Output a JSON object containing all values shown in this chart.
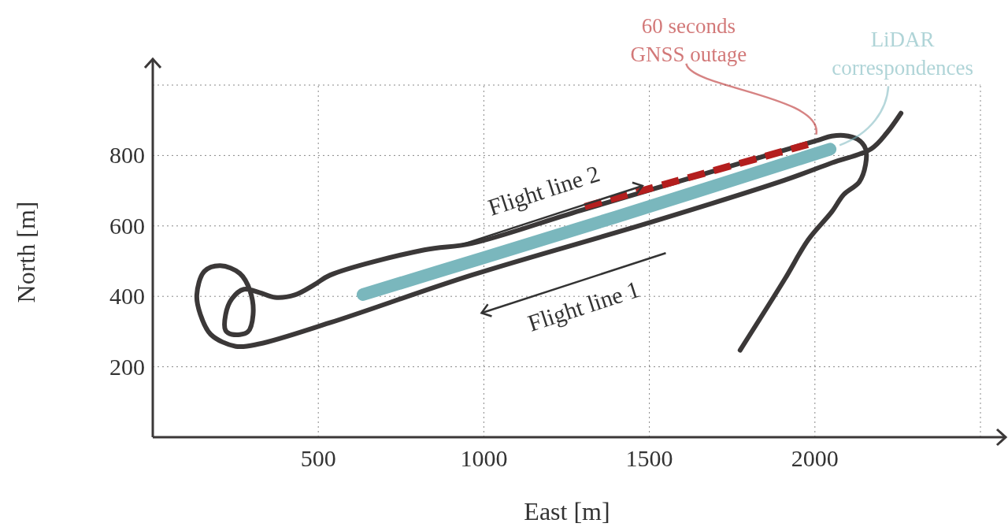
{
  "chart_data": {
    "type": "line",
    "xlabel": "East [m]",
    "ylabel": "North [m]",
    "xlim": [
      0,
      2500
    ],
    "ylim": [
      0,
      1000
    ],
    "xticks": [
      500,
      1000,
      1500,
      2000,
      {
        "value": 2500,
        "label": null
      }
    ],
    "yticks": [
      200,
      400,
      600,
      800,
      {
        "value": 1000,
        "label": null
      }
    ],
    "grid": true,
    "series": [
      {
        "color": "#3b3838",
        "x": [
          1774,
          1909,
          1980,
          2051,
          2087,
          2134,
          2153,
          2153,
          2129,
          2087,
          2051,
          2004,
          1293,
          962,
          820,
          535,
          488,
          429,
          369,
          322,
          275,
          239,
          220,
          220,
          239,
          287,
          303,
          294,
          263,
          204,
          156,
          133,
          144,
          175,
          251,
          322,
          535,
          962,
          1506,
          1909,
          2051,
          2170,
          2217,
          2260
        ],
        "values": [
          247,
          449,
          561,
          640,
          689,
          725,
          774,
          819,
          846,
          857,
          855,
          842,
          644,
          550,
          532,
          460,
          433,
          404,
          397,
          411,
          420,
          393,
          348,
          303,
          292,
          299,
          348,
          415,
          465,
          487,
          471,
          404,
          348,
          292,
          258,
          265,
          325,
          460,
          611,
          730,
          779,
          819,
          864,
          920
        ],
        "line_style": "solid"
      },
      {
        "name": "LiDAR correspondences",
        "color": "#7ab7bd",
        "x": [
          635,
          1000,
          1500,
          2046
        ],
        "values": [
          405,
          510,
          655,
          818
        ],
        "line_style": "solid"
      },
      {
        "name": "60 seconds GNSS outage",
        "color": "#b41e1e",
        "x": [
          1305,
          1992
        ],
        "values": [
          655,
          835
        ],
        "line_style": "dashed"
      }
    ],
    "annotations": [
      "Flight line 2",
      "Flight line 1"
    ]
  }
}
